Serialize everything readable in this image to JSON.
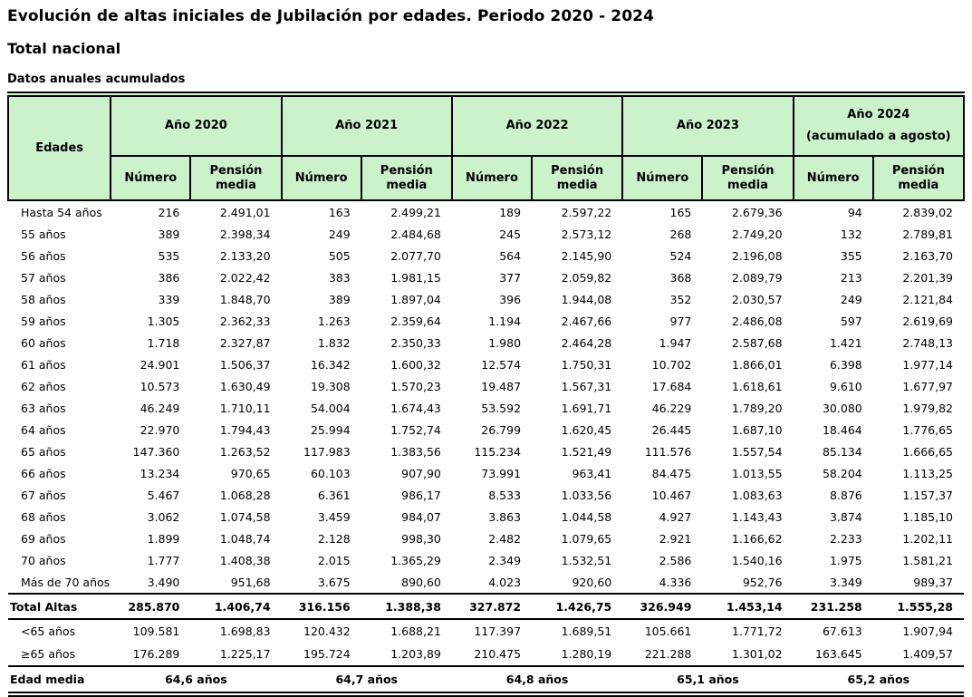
{
  "header": {
    "title": "Evolución de altas iniciales de Jubilación por edades. Periodo 2020 - 2024",
    "subtitle": "Total nacional",
    "note": "Datos anuales acumulados"
  },
  "table": {
    "corner_label": "Edades",
    "subheaders": {
      "numero": "Número",
      "pension": "Pensión media"
    },
    "year_groups": [
      {
        "label": "Año 2020",
        "sublabel": ""
      },
      {
        "label": "Año 2021",
        "sublabel": ""
      },
      {
        "label": "Año 2022",
        "sublabel": ""
      },
      {
        "label": "Año 2023",
        "sublabel": ""
      },
      {
        "label": "Año 2024",
        "sublabel": "(acumulado a agosto)"
      }
    ],
    "rows": [
      {
        "label": "Hasta 54 años",
        "values": [
          "216",
          "2.491,01",
          "163",
          "2.499,21",
          "189",
          "2.597,22",
          "165",
          "2.679,36",
          "94",
          "2.839,02"
        ]
      },
      {
        "label": "55 años",
        "values": [
          "389",
          "2.398,34",
          "249",
          "2.484,68",
          "245",
          "2.573,12",
          "268",
          "2.749,20",
          "132",
          "2.789,81"
        ]
      },
      {
        "label": "56 años",
        "values": [
          "535",
          "2.133,20",
          "505",
          "2.077,70",
          "564",
          "2.145,90",
          "524",
          "2.196,08",
          "355",
          "2.163,70"
        ]
      },
      {
        "label": "57 años",
        "values": [
          "386",
          "2.022,42",
          "383",
          "1.981,15",
          "377",
          "2.059,82",
          "368",
          "2.089,79",
          "213",
          "2.201,39"
        ]
      },
      {
        "label": "58 años",
        "values": [
          "339",
          "1.848,70",
          "389",
          "1.897,04",
          "396",
          "1.944,08",
          "352",
          "2.030,57",
          "249",
          "2.121,84"
        ]
      },
      {
        "label": "59 años",
        "values": [
          "1.305",
          "2.362,33",
          "1.263",
          "2.359,64",
          "1.194",
          "2.467,66",
          "977",
          "2.486,08",
          "597",
          "2.619,69"
        ]
      },
      {
        "label": "60 años",
        "values": [
          "1.718",
          "2.327,87",
          "1.832",
          "2.350,33",
          "1.980",
          "2.464,28",
          "1.947",
          "2.587,68",
          "1.421",
          "2.748,13"
        ]
      },
      {
        "label": "61 años",
        "values": [
          "24.901",
          "1.506,37",
          "16.342",
          "1.600,32",
          "12.574",
          "1.750,31",
          "10.702",
          "1.866,01",
          "6.398",
          "1.977,14"
        ]
      },
      {
        "label": "62 años",
        "values": [
          "10.573",
          "1.630,49",
          "19.308",
          "1.570,23",
          "19.487",
          "1.567,31",
          "17.684",
          "1.618,61",
          "9.610",
          "1.677,97"
        ]
      },
      {
        "label": "63 años",
        "values": [
          "46.249",
          "1.710,11",
          "54.004",
          "1.674,43",
          "53.592",
          "1.691,71",
          "46.229",
          "1.789,20",
          "30.080",
          "1.979,82"
        ]
      },
      {
        "label": "64 años",
        "values": [
          "22.970",
          "1.794,43",
          "25.994",
          "1.752,74",
          "26.799",
          "1.620,45",
          "26.445",
          "1.687,10",
          "18.464",
          "1.776,65"
        ]
      },
      {
        "label": "65 años",
        "values": [
          "147.360",
          "1.263,52",
          "117.983",
          "1.383,56",
          "115.234",
          "1.521,49",
          "111.576",
          "1.557,54",
          "85.134",
          "1.666,65"
        ]
      },
      {
        "label": "66 años",
        "values": [
          "13.234",
          "970,65",
          "60.103",
          "907,90",
          "73.991",
          "963,41",
          "84.475",
          "1.013,55",
          "58.204",
          "1.113,25"
        ]
      },
      {
        "label": "67 años",
        "values": [
          "5.467",
          "1.068,28",
          "6.361",
          "986,17",
          "8.533",
          "1.033,56",
          "10.467",
          "1.083,63",
          "8.876",
          "1.157,37"
        ]
      },
      {
        "label": "68 años",
        "values": [
          "3.062",
          "1.074,58",
          "3.459",
          "984,07",
          "3.863",
          "1.044,58",
          "4.927",
          "1.143,43",
          "3.874",
          "1.185,10"
        ]
      },
      {
        "label": "69 años",
        "values": [
          "1.899",
          "1.048,74",
          "2.128",
          "998,30",
          "2.482",
          "1.079,65",
          "2.921",
          "1.166,62",
          "2.233",
          "1.202,11"
        ]
      },
      {
        "label": "70 años",
        "values": [
          "1.777",
          "1.408,38",
          "2.015",
          "1.365,29",
          "2.349",
          "1.532,51",
          "2.586",
          "1.540,16",
          "1.975",
          "1.581,21"
        ]
      },
      {
        "label": "Más de 70 años",
        "values": [
          "3.490",
          "951,68",
          "3.675",
          "890,60",
          "4.023",
          "920,60",
          "4.336",
          "952,76",
          "3.349",
          "989,37"
        ]
      }
    ],
    "total_row": {
      "label": "Total Altas",
      "values": [
        "285.870",
        "1.406,74",
        "316.156",
        "1.388,38",
        "327.872",
        "1.426,75",
        "326.949",
        "1.453,14",
        "231.258",
        "1.555,28"
      ]
    },
    "summary_rows": [
      {
        "label": "<65 años",
        "values": [
          "109.581",
          "1.698,83",
          "120.432",
          "1.688,21",
          "117.397",
          "1.689,51",
          "105.661",
          "1.771,72",
          "67.613",
          "1.907,94"
        ]
      },
      {
        "label": "≥65 años",
        "values": [
          "176.289",
          "1.225,17",
          "195.724",
          "1.203,89",
          "210.475",
          "1.280,19",
          "221.288",
          "1.301,02",
          "163.645",
          "1.409,57"
        ]
      }
    ],
    "edad_media_row": {
      "label": "Edad media",
      "values": [
        "64,6 años",
        "64,7 años",
        "64,8 años",
        "65,1 años",
        "65,2 años"
      ]
    }
  },
  "colors": {
    "header_green": "#ccf2cc",
    "border_black": "#000000",
    "background": "#ffffff"
  }
}
